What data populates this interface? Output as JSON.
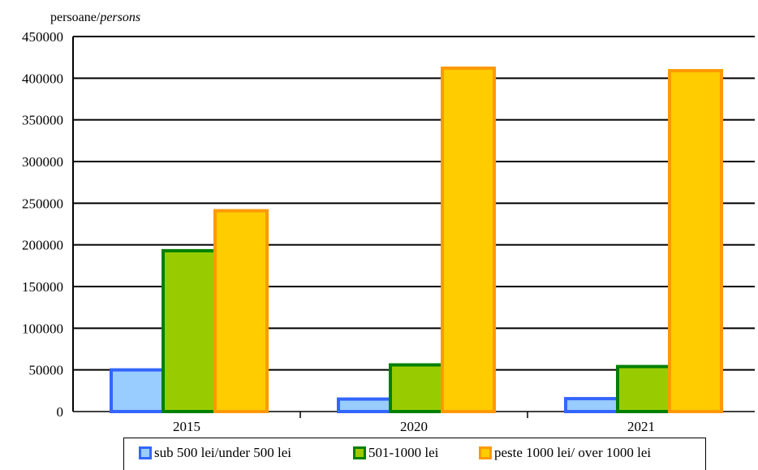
{
  "chart_data": {
    "type": "bar",
    "title": "",
    "ylabel": {
      "plain": "persoane/",
      "italic": "persons"
    },
    "xlabel": "",
    "ylim": [
      0,
      450000
    ],
    "yticks": [
      "0",
      "50000",
      "100000",
      "150000",
      "200000",
      "250000",
      "300000",
      "350000",
      "400000",
      "450000"
    ],
    "categories": [
      "2015",
      "2020",
      "2021"
    ],
    "series": [
      {
        "name": "sub 500 lei/under 500 lei",
        "fill": "#99ccff",
        "stroke": "#3366ff",
        "values": [
          50000,
          15000,
          15500
        ]
      },
      {
        "name": "501-1000 lei",
        "fill": "#99cc00",
        "stroke": "#008000",
        "values": [
          193000,
          56000,
          54000
        ]
      },
      {
        "name": "peste 1000 lei/ over 1000 lei",
        "fill": "#ffcc00",
        "stroke": "#ff9900",
        "values": [
          241000,
          412000,
          409000
        ]
      }
    ],
    "grid": true,
    "legend": "bottom"
  }
}
